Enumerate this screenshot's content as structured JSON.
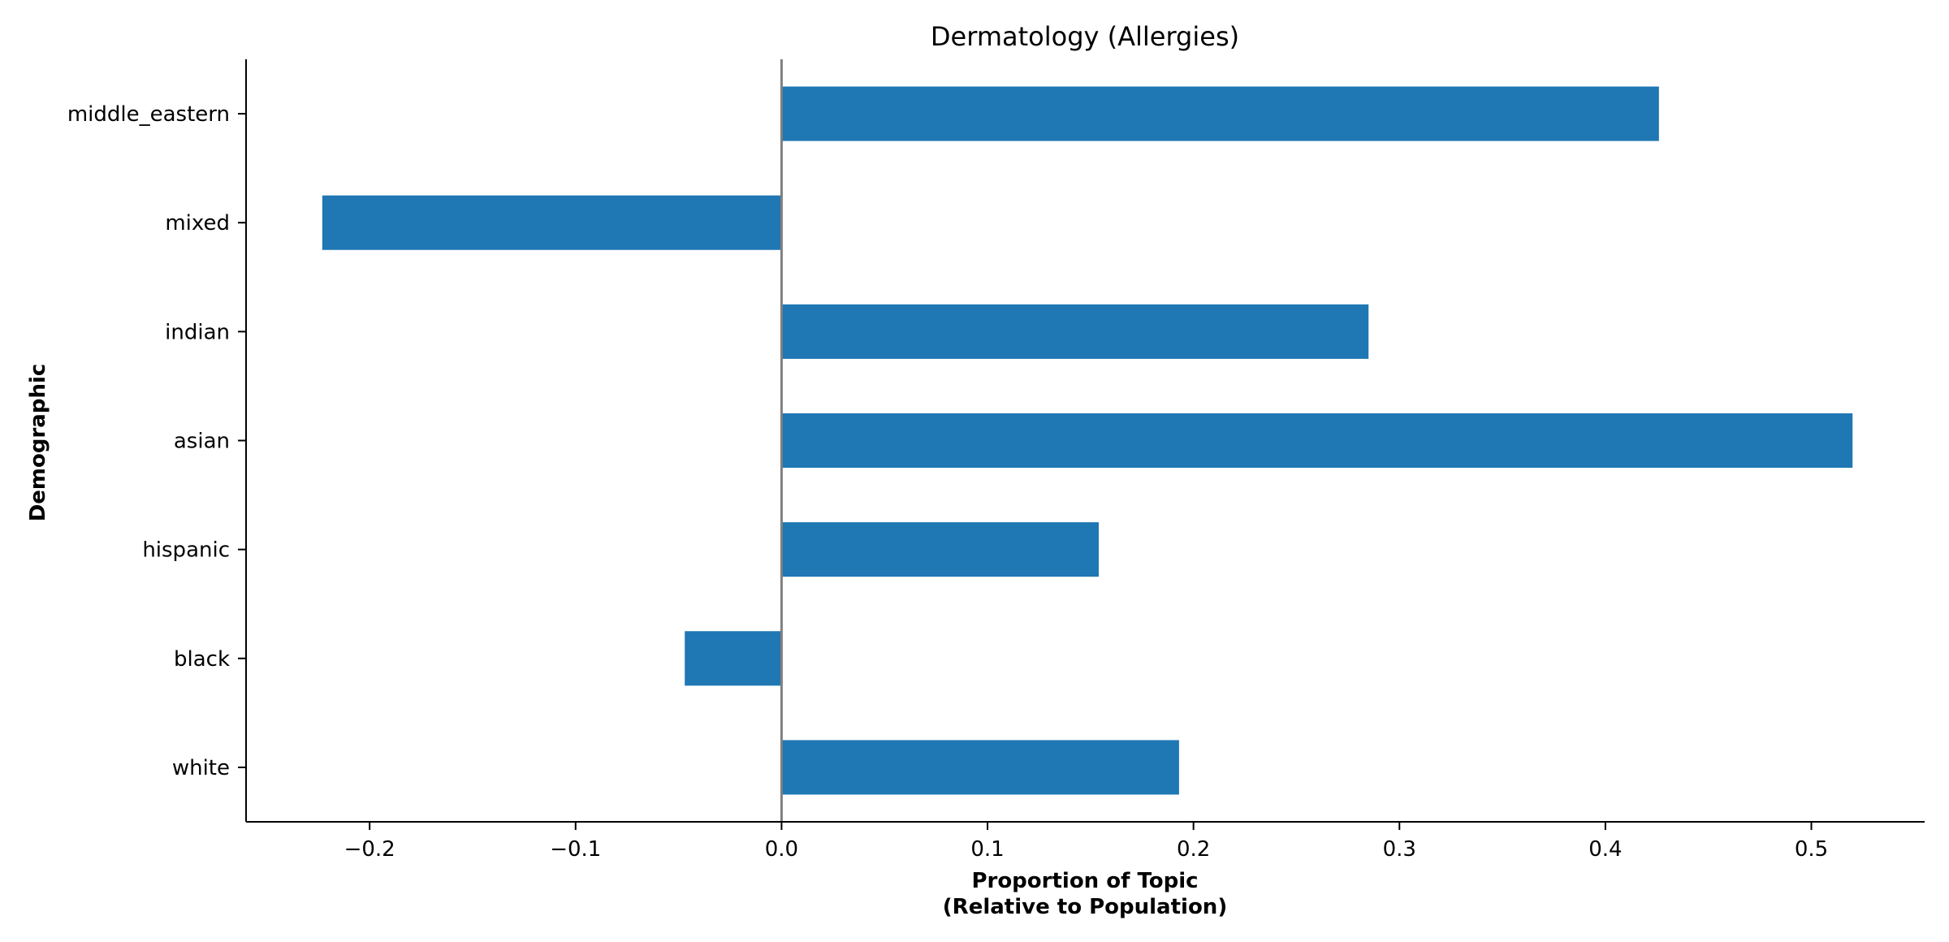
{
  "chart_data": {
    "type": "bar",
    "orientation": "horizontal",
    "title": "Dermatology (Allergies)",
    "xlabel_lines": [
      "Proportion of Topic",
      "(Relative to Population)"
    ],
    "ylabel": "Demographic",
    "categories": [
      "white",
      "black",
      "hispanic",
      "asian",
      "indian",
      "mixed",
      "middle_eastern"
    ],
    "values": [
      0.193,
      -0.047,
      0.154,
      0.52,
      0.285,
      -0.223,
      0.426
    ],
    "xlim": [
      -0.26,
      0.555
    ],
    "xticks": [
      -0.2,
      -0.1,
      0.0,
      0.1,
      0.2,
      0.3,
      0.4,
      0.5
    ],
    "xtick_labels": [
      "−0.2",
      "−0.1",
      "0.0",
      "0.1",
      "0.2",
      "0.3",
      "0.4",
      "0.5"
    ],
    "bar_color": "#1f77b4",
    "zero_line_color": "#808080",
    "grid": false,
    "legend": "none"
  }
}
